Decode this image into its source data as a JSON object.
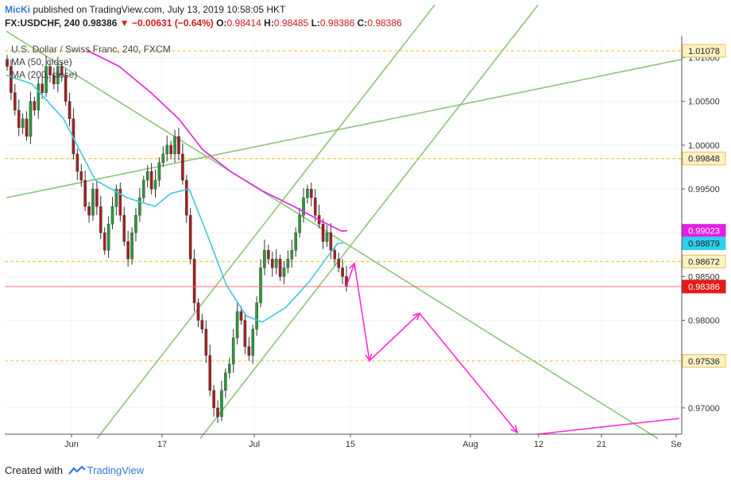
{
  "header": {
    "user": "MicKi",
    "published_text": "published on TradingView.com, July 13, 2019 10:58:05 HKT",
    "symbol": "FX:USDCHF, 240",
    "last": "0.98386",
    "change": "−0.00631 (−0.64%)",
    "o_label": "O:",
    "o_value": "0.98414",
    "h_label": "H:",
    "h_value": "0.98485",
    "l_label": "L:",
    "l_value": "0.98386",
    "c_label": "C:",
    "c_value": "0.98386"
  },
  "legend": {
    "instrument": "U.S. Dollar / Swiss Franc, 240, FXCM",
    "ma1": "MA (50, close)",
    "ma2": "MA (200, close)"
  },
  "footer": {
    "created_with": "Created with",
    "brand": "TradingView"
  },
  "colors": {
    "up_candle": "#2a9a3a",
    "down_candle": "#a81f1f",
    "ma50": "#3dc8e6",
    "ma200": "#e31ee3",
    "trendline": "#8cc47a",
    "level": "#f2cc4a",
    "projection": "#ff2bd6",
    "price_line": "#ef6b6b",
    "price_tag": "#e31b1b"
  },
  "chart_data": {
    "type": "candlestick",
    "symbol": "USDCHF",
    "timeframe": "240",
    "x_axis_labels": [
      "Jun",
      "17",
      "Jul",
      "15",
      "Aug",
      "12",
      "21",
      "Se"
    ],
    "y_axis_ticks": [
      1.01,
      1.005,
      1.0,
      0.995,
      0.99,
      0.985,
      0.98,
      0.975,
      0.97
    ],
    "y_range": [
      0.967,
      1.0125
    ],
    "horizontal_levels": [
      1.01078,
      0.99848,
      0.98672,
      0.97536
    ],
    "price_tags": [
      {
        "value": "1.01078",
        "kind": "level"
      },
      {
        "value": "0.99848",
        "kind": "level"
      },
      {
        "value": "0.99023",
        "kind": "ma200"
      },
      {
        "value": "0.98879",
        "kind": "ma50"
      },
      {
        "value": "0.98672",
        "kind": "level"
      },
      {
        "value": "0.98386",
        "kind": "last"
      },
      {
        "value": "0.97536",
        "kind": "level"
      }
    ],
    "closes": [
      1.009,
      1.006,
      1.004,
      1.002,
      1.003,
      1.001,
      1.005,
      1.004,
      1.007,
      1.006,
      1.009,
      1.008,
      1.007,
      1.009,
      1.008,
      1.005,
      1.003,
      0.999,
      0.997,
      0.996,
      0.993,
      0.992,
      0.995,
      0.993,
      0.99,
      0.988,
      0.991,
      0.993,
      0.995,
      0.992,
      0.989,
      0.987,
      0.99,
      0.992,
      0.994,
      0.996,
      0.997,
      0.995,
      0.996,
      0.998,
      0.999,
      1.0,
      0.999,
      1.001,
      0.999,
      0.996,
      0.992,
      0.987,
      0.982,
      0.98,
      0.979,
      0.976,
      0.972,
      0.97,
      0.969,
      0.972,
      0.974,
      0.975,
      0.978,
      0.981,
      0.98,
      0.977,
      0.976,
      0.979,
      0.982,
      0.986,
      0.988,
      0.987,
      0.986,
      0.987,
      0.985,
      0.986,
      0.987,
      0.988,
      0.99,
      0.992,
      0.994,
      0.995,
      0.994,
      0.992,
      0.991,
      0.989,
      0.99,
      0.988,
      0.987,
      0.986,
      0.985,
      0.9839
    ],
    "candle_x_range": [
      "2019-05-24",
      "2019-07-12"
    ],
    "ma50": [
      [
        8,
        1.008
      ],
      [
        40,
        1.007
      ],
      [
        80,
        1.003
      ],
      [
        120,
        0.996
      ],
      [
        160,
        0.994
      ],
      [
        195,
        0.993
      ],
      [
        215,
        0.9945
      ],
      [
        238,
        0.995
      ],
      [
        260,
        0.99
      ],
      [
        285,
        0.984
      ],
      [
        310,
        0.9805
      ],
      [
        330,
        0.9798
      ],
      [
        360,
        0.9815
      ],
      [
        390,
        0.9845
      ],
      [
        410,
        0.987
      ],
      [
        425,
        0.9888
      ],
      [
        432,
        0.9888
      ]
    ],
    "ma200": [
      [
        110,
        1.0108
      ],
      [
        150,
        1.009
      ],
      [
        190,
        1.006
      ],
      [
        225,
        1.003
      ],
      [
        255,
        0.9995
      ],
      [
        290,
        0.997
      ],
      [
        330,
        0.9948
      ],
      [
        370,
        0.993
      ],
      [
        405,
        0.9913
      ],
      [
        430,
        0.9902
      ],
      [
        437,
        0.99023
      ]
    ],
    "trendlines": [
      {
        "from": [
          8,
          0.994
        ],
        "to": [
          858,
          1.0098
        ]
      },
      {
        "from": [
          8,
          1.013
        ],
        "to": [
          828,
          0.9665
        ]
      },
      {
        "from": [
          122,
          0.9665
        ],
        "to": [
          547,
          1.016
        ]
      },
      {
        "from": [
          252,
          0.9665
        ],
        "to": [
          677,
          1.016
        ]
      }
    ],
    "projection_path": [
      [
        436,
        0.9839
      ],
      [
        446,
        0.9865
      ],
      [
        465,
        0.9754
      ],
      [
        528,
        0.9808
      ],
      [
        651,
        0.9672
      ]
    ],
    "projection_right": {
      "from": [
        676,
        0.967
      ],
      "to": [
        855,
        0.9688
      ]
    }
  }
}
